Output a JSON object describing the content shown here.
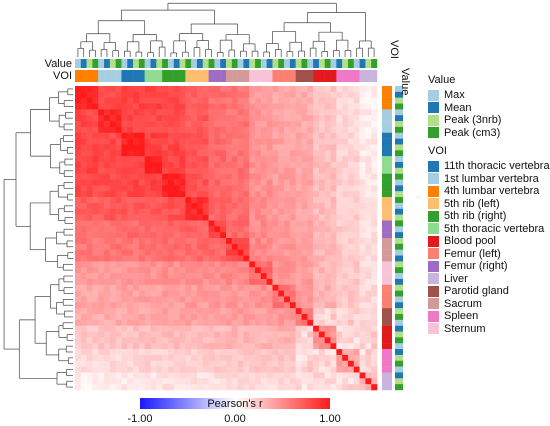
{
  "chart_data": {
    "type": "heatmap",
    "row_annotation_label": "Value",
    "col_annotation_label": "VOI",
    "side_annotation_labels": [
      "VOI",
      "Value"
    ],
    "colorbar": {
      "title": "Pearson's r",
      "ticks": [
        "-1.00",
        "0.00",
        "1.00"
      ],
      "min": -1.0,
      "max": 1.0,
      "low_color": "#1a1aff",
      "mid_color": "#ffffff",
      "high_color": "#ff1a1a"
    },
    "n": 52,
    "block_order": [
      "4th lumbar vertebra",
      "1st lumbar vertebra",
      "11th thoracic vertebra",
      "5th thoracic vertebra",
      "5th rib (right)",
      "5th rib (left)",
      "Femur (right)",
      "Sacrum",
      "Sternum",
      "Femur (left)",
      "Parotid gland",
      "Blood pool",
      "Spleen",
      "Liver"
    ],
    "block_base_r": [
      0.9,
      0.85,
      0.88,
      0.9,
      0.87,
      0.8,
      0.72,
      0.7,
      0.55,
      0.5,
      0.48,
      0.38,
      0.3,
      0.22
    ],
    "value_pattern": [
      "Max",
      "Mean",
      "Peak (3nrb)",
      "Peak (cm3)"
    ],
    "value_groups": {
      "title": "Value",
      "items": [
        {
          "label": "Max",
          "color": "#a6cee3"
        },
        {
          "label": "Mean",
          "color": "#1f78b4"
        },
        {
          "label": "Peak (3nrb)",
          "color": "#b2df8a"
        },
        {
          "label": "Peak (cm3)",
          "color": "#33a02c"
        }
      ]
    },
    "voi_groups": {
      "title": "VOI",
      "items": [
        {
          "label": "11th thoracic vertebra",
          "color": "#1f78b4"
        },
        {
          "label": "1st lumbar vertebra",
          "color": "#a6cee3"
        },
        {
          "label": "4th lumbar vertebra",
          "color": "#ff7f00"
        },
        {
          "label": "5th rib (left)",
          "color": "#fdbf6f"
        },
        {
          "label": "5th rib (right)",
          "color": "#33a02c"
        },
        {
          "label": "5th thoracic vertebra",
          "color": "#8fdb8f"
        },
        {
          "label": "Blood pool",
          "color": "#e31a1c"
        },
        {
          "label": "Femur (left)",
          "color": "#fb8072"
        },
        {
          "label": "Femur (right)",
          "color": "#9e6cc4"
        },
        {
          "label": "Liver",
          "color": "#c8b4dc"
        },
        {
          "label": "Parotid gland",
          "color": "#a0524a"
        },
        {
          "label": "Sacrum",
          "color": "#d39a98"
        },
        {
          "label": "Spleen",
          "color": "#f078c8"
        },
        {
          "label": "Sternum",
          "color": "#f7c3d8"
        }
      ]
    }
  }
}
